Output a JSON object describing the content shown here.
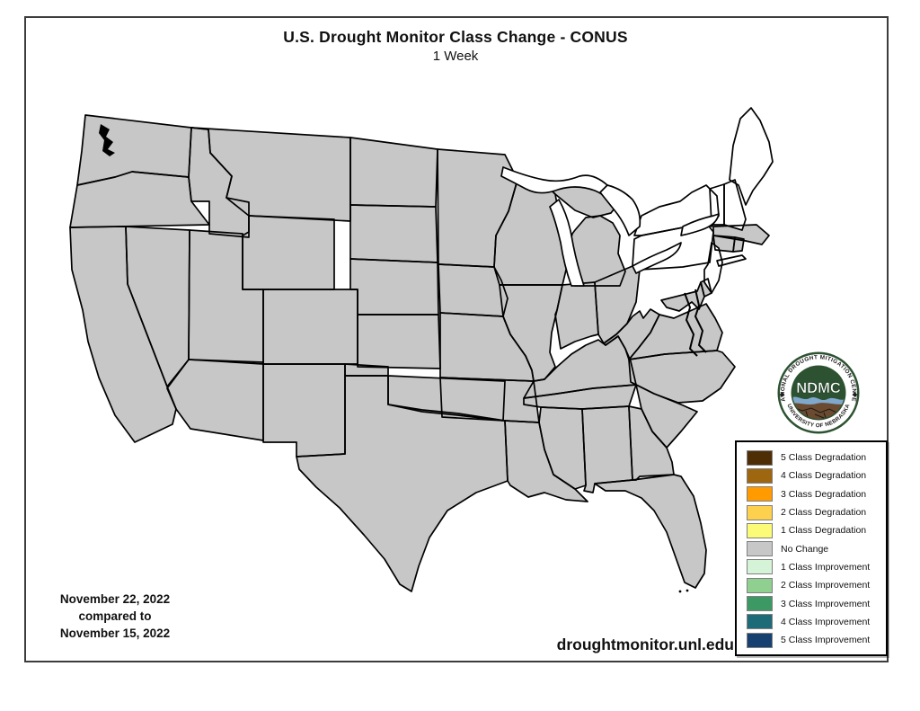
{
  "header": {
    "title": "U.S. Drought Monitor Class Change - CONUS",
    "subtitle": "1 Week"
  },
  "annotations": {
    "date_line1": "November 22, 2022",
    "date_line2": "compared to",
    "date_line3": "November 15, 2022",
    "website": "droughtmonitor.unl.edu"
  },
  "legend": {
    "items": [
      {
        "label": "5 Class Degradation",
        "color": "#4e2e04"
      },
      {
        "label": "4 Class Degradation",
        "color": "#9e660e"
      },
      {
        "label": "3 Class Degradation",
        "color": "#ff9a00"
      },
      {
        "label": "2 Class Degradation",
        "color": "#fdd04e"
      },
      {
        "label": "1 Class Degradation",
        "color": "#fbfb77"
      },
      {
        "label": "No Change",
        "color": "#c7c7c7"
      },
      {
        "label": "1 Class Improvement",
        "color": "#d5f3d6"
      },
      {
        "label": "2 Class Improvement",
        "color": "#8fcf90"
      },
      {
        "label": "3 Class Improvement",
        "color": "#3d9963"
      },
      {
        "label": "4 Class Improvement",
        "color": "#1d6b78"
      },
      {
        "label": "5 Class Improvement",
        "color": "#16406f"
      }
    ]
  },
  "map": {
    "colors": {
      "no_change": "#c7c7c7",
      "degradation_1": "#fbfb77",
      "improvement_1": "#d5f3d6",
      "no_data": "#ffffff",
      "border": "#000000"
    }
  },
  "logo": {
    "acronym": "NDMC",
    "ring_top": "NATIONAL DROUGHT MITIGATION CENTER",
    "ring_bottom": "UNIVERSITY OF NEBRASKA",
    "colors": {
      "green": "#2d5232",
      "wave": "#7fa8cc",
      "soil": "#6b4a2f",
      "text": "#1d1d1d"
    }
  }
}
